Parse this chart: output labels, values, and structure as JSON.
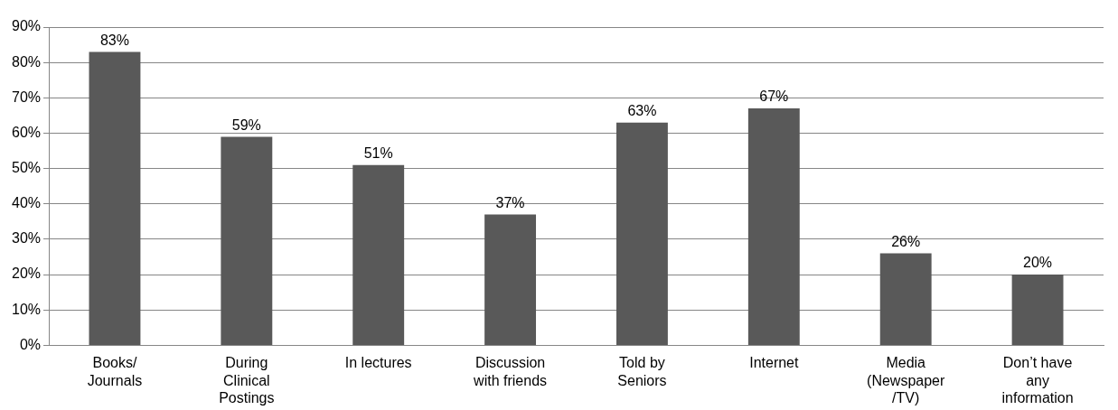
{
  "chart_data": {
    "type": "bar",
    "categories": [
      "Books/\nJournals",
      "During\nClinical\nPostings",
      "In lectures",
      "Discussion\nwith friends",
      "Told by\nSeniors",
      "Internet",
      "Media\n(Newspaper\n/TV)",
      "Don’t have\nany\ninformation"
    ],
    "values": [
      83,
      59,
      51,
      37,
      63,
      67,
      26,
      20
    ],
    "value_labels": [
      "83%",
      "59%",
      "51%",
      "37%",
      "63%",
      "67%",
      "26%",
      "20%"
    ],
    "color": "#595959",
    "ylim": [
      0,
      90
    ],
    "yticks": [
      {
        "value": 0,
        "label": "0%"
      },
      {
        "value": 10,
        "label": "10%"
      },
      {
        "value": 20,
        "label": "20%"
      },
      {
        "value": 30,
        "label": "30%"
      },
      {
        "value": 40,
        "label": "40%"
      },
      {
        "value": 50,
        "label": "50%"
      },
      {
        "value": 60,
        "label": "60%"
      },
      {
        "value": 70,
        "label": "70%"
      },
      {
        "value": 80,
        "label": "80%"
      },
      {
        "value": 90,
        "label": "90%"
      }
    ],
    "grid": "y",
    "legend": false
  }
}
